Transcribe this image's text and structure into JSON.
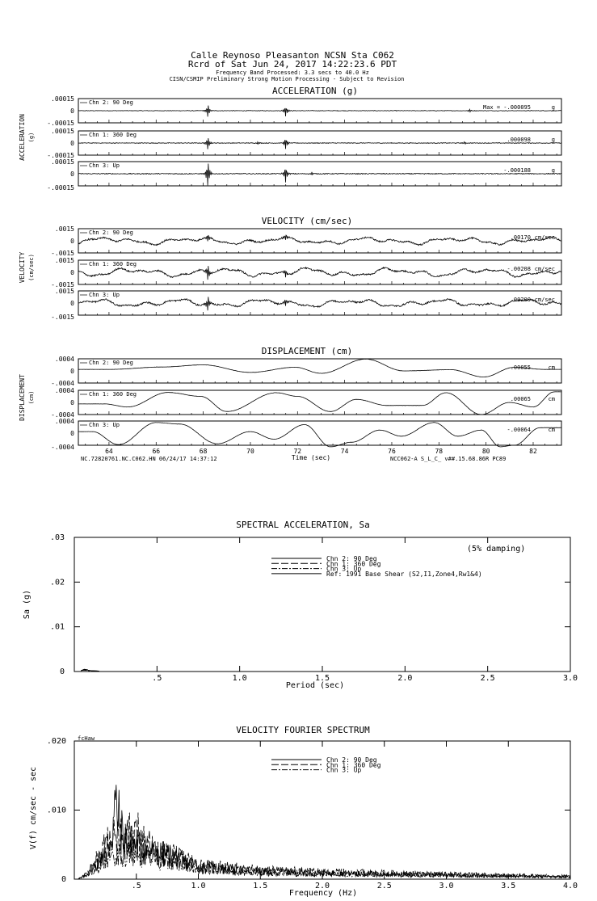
{
  "header": {
    "line1": "Calle Reynoso Pleasanton    NCSN Sta C062",
    "line2": "Rcrd of Sat Jun 24, 2017 14:22:23.6 PDT",
    "line3": "Frequency Band Processed: 3.3 secs to 40.0 Hz",
    "line4": "CISN/CSMIP Preliminary Strong Motion Processing - Subject to Revision"
  },
  "footer_left": "NC.72820761.NC.C062.HN 06/24/17 14:37:12",
  "footer_right": "NCC062-A  S_L_C_  v##.15.68.86R PC89",
  "time_axis": {
    "label": "Time (sec)",
    "xlim": [
      62.7,
      83.2
    ],
    "ticks": [
      "64",
      "66",
      "68",
      "70",
      "72",
      "74",
      "76",
      "78",
      "80",
      "82"
    ]
  },
  "chart_data": [
    {
      "type": "line",
      "title": "ACCELERATION (g)",
      "ylabel": "ACCELERATION",
      "unit_label": "(g)",
      "unit": "g",
      "ylim": [
        -0.00015,
        0.00015
      ],
      "ytick_top": ".00015",
      "ytick_mid": "0",
      "ytick_bottom": "-.00015",
      "series": [
        {
          "name": "Chn 2: 90 Deg",
          "peak": "Max =  -.000095",
          "noise": 3e-06,
          "lf": 0.0,
          "spikes": [
            [
              68.2,
              9.5e-05
            ],
            [
              71.5,
              8e-05
            ],
            [
              79.3,
              2e-05
            ]
          ]
        },
        {
          "name": "Chn 1: 360 Deg",
          "peak": ".000098",
          "noise": 4e-06,
          "lf": 0.0,
          "spikes": [
            [
              68.2,
              9.8e-05
            ],
            [
              71.5,
              9e-05
            ],
            [
              70.3,
              2e-05
            ],
            [
              79.1,
              2e-05
            ]
          ]
        },
        {
          "name": "Chn 3: Up",
          "peak": "-.000188",
          "noise": 5e-06,
          "lf": 0.0,
          "spikes": [
            [
              68.2,
              0.000188
            ],
            [
              71.5,
              0.00012
            ],
            [
              72.6,
              3e-05
            ]
          ]
        }
      ]
    },
    {
      "type": "line",
      "title": "VELOCITY (cm/sec)",
      "ylabel": "VELOCITY",
      "unit_label": "(cm/sec)",
      "unit": "cm/sec",
      "ylim": [
        -0.0015,
        0.0015
      ],
      "ytick_top": ".0015",
      "ytick_mid": "0",
      "ytick_bottom": "-.0015",
      "series": [
        {
          "name": "Chn 2: 90 Deg",
          "peak": ".00170",
          "noise": 6e-05,
          "lf": 0.00045,
          "spikes": [
            [
              68.2,
              0.0006
            ],
            [
              71.5,
              0.0005
            ]
          ]
        },
        {
          "name": "Chn 1: 360 Deg",
          "peak": "-.00208",
          "noise": 6e-05,
          "lf": 0.00055,
          "spikes": [
            [
              68.2,
              0.0012
            ],
            [
              71.5,
              0.0006
            ]
          ]
        },
        {
          "name": "Chn 3: Up",
          "peak": ".00200",
          "noise": 6e-05,
          "lf": 0.0005,
          "spikes": [
            [
              68.2,
              0.0011
            ],
            [
              71.5,
              0.0006
            ]
          ]
        }
      ]
    },
    {
      "type": "line",
      "title": "DISPLACEMENT (cm)",
      "ylabel": "DISPLACEMENT",
      "unit_label": "(cm)",
      "unit": "cm",
      "ylim": [
        -0.0004,
        0.0004
      ],
      "ytick_top": ".0004",
      "ytick_mid": "0",
      "ytick_bottom": "-.0004",
      "series": [
        {
          "name": "Chn 2: 90 Deg",
          "peak": ".00055",
          "noise": 3e-06,
          "lf": 0.0,
          "waves": [
            [
              64.0,
              5e-05
            ],
            [
              66.3,
              0.00013
            ],
            [
              68.0,
              0.0002
            ],
            [
              70.0,
              -5e-05
            ],
            [
              71.9,
              0.00012
            ],
            [
              73.0,
              -8e-05
            ],
            [
              74.9,
              0.00039
            ],
            [
              76.5,
              0.0
            ],
            [
              78.5,
              4e-05
            ],
            [
              79.9,
              -0.0002
            ],
            [
              81.2,
              0.00012
            ],
            [
              82.5,
              5e-05
            ]
          ]
        },
        {
          "name": "Chn 1: 360 Deg",
          "peak": ".00065",
          "noise": 3e-06,
          "lf": 0.0,
          "waves": [
            [
              63.8,
              -5e-05
            ],
            [
              64.8,
              -0.00015
            ],
            [
              66.5,
              0.00033
            ],
            [
              67.9,
              0.0002
            ],
            [
              69.0,
              -0.0003
            ],
            [
              71.1,
              0.00032
            ],
            [
              72.0,
              0.0002
            ],
            [
              73.4,
              -0.0003
            ],
            [
              74.5,
              0.0001
            ],
            [
              75.8,
              -0.0001
            ],
            [
              77.3,
              -0.0001
            ],
            [
              78.3,
              0.00032
            ],
            [
              79.8,
              -0.0004
            ],
            [
              81.0,
              0.0
            ],
            [
              82.0,
              -0.00015
            ],
            [
              82.9,
              0.00035
            ]
          ]
        },
        {
          "name": "Chn 3: Up",
          "peak": "-.00064",
          "noise": 3e-06,
          "lf": 0.0,
          "waves": [
            [
              63.3,
              5e-05
            ],
            [
              64.4,
              -0.00038
            ],
            [
              66.0,
              0.00035
            ],
            [
              67.0,
              0.0003
            ],
            [
              68.6,
              -0.00035
            ],
            [
              70.0,
              5e-05
            ],
            [
              71.0,
              -0.0002
            ],
            [
              72.3,
              0.00028
            ],
            [
              73.4,
              -0.00045
            ],
            [
              74.3,
              -0.0003
            ],
            [
              75.5,
              0.0001
            ],
            [
              76.4,
              -0.0001
            ],
            [
              77.8,
              0.00035
            ],
            [
              78.8,
              -0.0001
            ],
            [
              79.8,
              0.0001
            ],
            [
              80.6,
              -0.00045
            ],
            [
              81.2,
              -0.0004
            ],
            [
              82.3,
              0.00018
            ]
          ]
        }
      ]
    },
    {
      "type": "line",
      "title": "SPECTRAL ACCELERATION, Sa",
      "xlabel": "Period (sec)",
      "ylabel": "Sa (g)",
      "annotation": "(5% damping)",
      "xlim": [
        0,
        3.0
      ],
      "ylim": [
        0,
        0.03
      ],
      "xticks": [
        0.5,
        1.0,
        1.5,
        2.0,
        2.5,
        3.0
      ],
      "xtick_labels": [
        ".5",
        "1.0",
        "1.5",
        "2.0",
        "2.5",
        "3.0"
      ],
      "yticks": [
        0,
        0.01,
        0.02,
        0.03
      ],
      "ytick_labels": [
        "0",
        ".01",
        ".02",
        ".03"
      ],
      "legend": [
        "Chn 2: 90 Deg",
        "Chn 1: 360 Deg",
        "Chn 3: Up",
        "Ref: 1991 Base Shear (S2,I1,Zone4,Rw1&4)"
      ],
      "legend_placement": "top-center",
      "series": [
        {
          "name": "Chn 2: 90 Deg",
          "x": [
            0.04,
            0.06,
            0.08,
            0.1,
            0.15
          ],
          "y": [
            0.0002,
            0.0004,
            0.0003,
            0.0002,
            0.0001
          ]
        },
        {
          "name": "Chn 1: 360 Deg",
          "x": [
            0.04,
            0.06,
            0.08,
            0.1,
            0.15
          ],
          "y": [
            0.0002,
            0.0005,
            0.0004,
            0.0002,
            0.0001
          ]
        },
        {
          "name": "Chn 3: Up",
          "x": [
            0.04,
            0.06,
            0.08,
            0.1,
            0.15
          ],
          "y": [
            0.0002,
            0.0003,
            0.0002,
            0.0001,
            0.0001
          ]
        }
      ]
    },
    {
      "type": "line",
      "title": "VELOCITY FOURIER SPECTRUM",
      "xlabel": "Frequency (Hz)",
      "ylabel": "V(f)  cm/sec - sec",
      "corner_label": "fcHaw",
      "xlim": [
        0,
        4.0
      ],
      "ylim": [
        0,
        0.02
      ],
      "xticks": [
        0.5,
        1.0,
        1.5,
        2.0,
        2.5,
        3.0,
        3.5,
        4.0
      ],
      "xtick_labels": [
        ".5",
        "1.0",
        "1.5",
        "2.0",
        "2.5",
        "3.0",
        "3.5",
        "4.0"
      ],
      "yticks": [
        0,
        0.01,
        0.02
      ],
      "ytick_labels": [
        "0",
        ".010",
        ".020"
      ],
      "legend": [
        "Chn 2: 90 Deg",
        "Chn 1: 360 Deg",
        "Chn 3: Up"
      ],
      "legend_placement": "top-center",
      "series": [
        {
          "name": "Chn 2: 90 Deg",
          "x": [
            0.03,
            0.1,
            0.2,
            0.3,
            0.33,
            0.4,
            0.5,
            0.6,
            0.8,
            1.0,
            1.5,
            2.0,
            2.5,
            3.0,
            3.5,
            4.0
          ],
          "y": [
            0,
            0.0008,
            0.0035,
            0.008,
            0.0133,
            0.007,
            0.006,
            0.005,
            0.004,
            0.0022,
            0.0014,
            0.0011,
            0.0009,
            0.0008,
            0.0006,
            0.0004
          ]
        },
        {
          "name": "Chn 1: 360 Deg",
          "x": [
            0.03,
            0.1,
            0.2,
            0.3,
            0.4,
            0.5,
            0.55,
            0.6,
            0.8,
            1.0,
            1.5,
            2.0,
            2.5,
            3.0,
            3.5,
            4.0
          ],
          "y": [
            0,
            0.001,
            0.004,
            0.007,
            0.008,
            0.0075,
            0.0092,
            0.006,
            0.0042,
            0.0024,
            0.0016,
            0.0013,
            0.0011,
            0.0009,
            0.0007,
            0.0005
          ]
        },
        {
          "name": "Chn 3: Up",
          "x": [
            0.03,
            0.1,
            0.2,
            0.3,
            0.4,
            0.5,
            0.6,
            0.8,
            1.0,
            1.5,
            2.0,
            2.5,
            3.0,
            3.5,
            4.0
          ],
          "y": [
            0,
            0.0006,
            0.0025,
            0.0045,
            0.005,
            0.004,
            0.0035,
            0.003,
            0.002,
            0.0012,
            0.001,
            0.0008,
            0.0007,
            0.0006,
            0.0004
          ]
        }
      ]
    }
  ]
}
